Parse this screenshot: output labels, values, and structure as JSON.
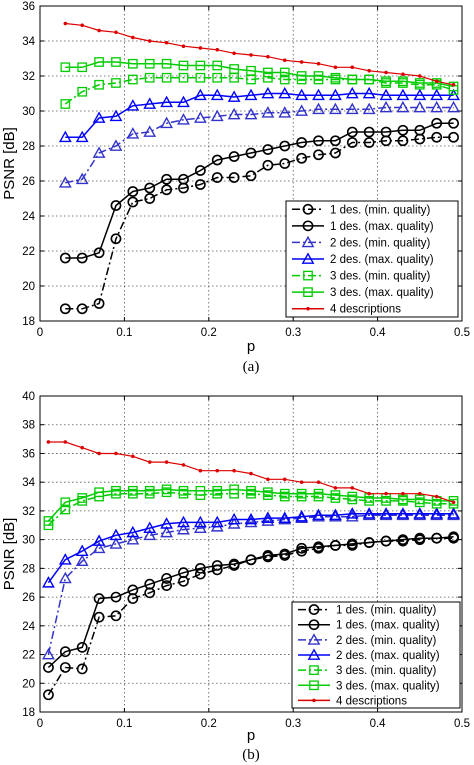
{
  "chart_data": [
    {
      "type": "line",
      "caption": "(a)",
      "xlabel": "p",
      "ylabel": "PSNR [dB]",
      "xlim": [
        0,
        0.5
      ],
      "ylim": [
        18,
        36
      ],
      "xticks": [
        "0",
        "0.1",
        "0.2",
        "0.3",
        "0.4",
        "0.5"
      ],
      "yticks": [
        "18",
        "20",
        "22",
        "24",
        "26",
        "28",
        "30",
        "32",
        "34",
        "36"
      ],
      "grid": true,
      "legend_position": "bottom-right",
      "series": [
        {
          "name": "1 des. (min. quality)",
          "color": "#000000",
          "dash": "dashdot",
          "marker": "circle",
          "x": [
            0.03,
            0.05,
            0.07,
            0.09,
            0.11,
            0.13,
            0.15,
            0.17,
            0.19,
            0.21,
            0.23,
            0.25,
            0.27,
            0.29,
            0.31,
            0.33,
            0.35,
            0.37,
            0.39,
            0.41,
            0.43,
            0.45,
            0.47,
            0.49
          ],
          "y": [
            18.7,
            18.7,
            19.0,
            22.7,
            24.8,
            25.0,
            25.5,
            25.6,
            25.8,
            26.2,
            26.2,
            26.3,
            26.9,
            27.0,
            27.3,
            27.5,
            27.6,
            28.2,
            28.2,
            28.3,
            28.3,
            28.4,
            28.5,
            28.5
          ]
        },
        {
          "name": "1 des. (max. quality)",
          "color": "#000000",
          "dash": "solid",
          "marker": "circle",
          "x": [
            0.03,
            0.05,
            0.07,
            0.09,
            0.11,
            0.13,
            0.15,
            0.17,
            0.19,
            0.21,
            0.23,
            0.25,
            0.27,
            0.29,
            0.31,
            0.33,
            0.35,
            0.37,
            0.39,
            0.41,
            0.43,
            0.45,
            0.47,
            0.49
          ],
          "y": [
            21.6,
            21.6,
            21.9,
            24.6,
            25.4,
            25.6,
            26.1,
            26.1,
            26.6,
            27.2,
            27.4,
            27.6,
            27.8,
            28.0,
            28.2,
            28.3,
            28.3,
            28.8,
            28.8,
            28.8,
            28.9,
            28.9,
            29.3,
            29.3
          ]
        },
        {
          "name": "2 des. (min. quality)",
          "color": "#3333cc",
          "dash": "dashdot",
          "marker": "triangle",
          "x": [
            0.03,
            0.05,
            0.07,
            0.09,
            0.11,
            0.13,
            0.15,
            0.17,
            0.19,
            0.21,
            0.23,
            0.25,
            0.27,
            0.29,
            0.31,
            0.33,
            0.35,
            0.37,
            0.39,
            0.41,
            0.43,
            0.45,
            0.47,
            0.49
          ],
          "y": [
            25.9,
            26.1,
            27.6,
            28.0,
            28.7,
            28.8,
            29.3,
            29.5,
            29.6,
            29.7,
            29.8,
            29.8,
            29.9,
            29.9,
            30.0,
            30.1,
            30.1,
            30.1,
            30.1,
            30.2,
            30.2,
            30.2,
            30.2,
            30.2
          ]
        },
        {
          "name": "2 des. (max. quality)",
          "color": "#0000ff",
          "dash": "solid",
          "marker": "triangle",
          "x": [
            0.03,
            0.05,
            0.07,
            0.09,
            0.11,
            0.13,
            0.15,
            0.17,
            0.19,
            0.21,
            0.23,
            0.25,
            0.27,
            0.29,
            0.31,
            0.33,
            0.35,
            0.37,
            0.39,
            0.41,
            0.43,
            0.45,
            0.47,
            0.49
          ],
          "y": [
            28.5,
            28.5,
            29.6,
            29.7,
            30.3,
            30.4,
            30.5,
            30.5,
            30.9,
            30.9,
            30.8,
            30.9,
            31.0,
            31.0,
            30.9,
            30.9,
            30.9,
            31.0,
            31.0,
            30.9,
            30.9,
            30.9,
            30.9,
            30.9
          ]
        },
        {
          "name": "3 des. (min. quality)",
          "color": "#00cc00",
          "dash": "dashdot",
          "marker": "square",
          "x": [
            0.03,
            0.05,
            0.07,
            0.09,
            0.11,
            0.13,
            0.15,
            0.17,
            0.19,
            0.21,
            0.23,
            0.25,
            0.27,
            0.29,
            0.31,
            0.33,
            0.35,
            0.37,
            0.39,
            0.41,
            0.43,
            0.45,
            0.47,
            0.49
          ],
          "y": [
            30.4,
            31.1,
            31.5,
            31.6,
            31.8,
            31.9,
            31.9,
            31.9,
            31.9,
            31.9,
            31.9,
            31.8,
            31.9,
            31.8,
            31.8,
            31.8,
            31.8,
            31.8,
            31.8,
            31.6,
            31.6,
            31.5,
            31.5,
            31.2
          ]
        },
        {
          "name": "3 des. (max. quality)",
          "color": "#00cc00",
          "dash": "solid",
          "marker": "square",
          "x": [
            0.03,
            0.05,
            0.07,
            0.09,
            0.11,
            0.13,
            0.15,
            0.17,
            0.19,
            0.21,
            0.23,
            0.25,
            0.27,
            0.29,
            0.31,
            0.33,
            0.35,
            0.37,
            0.39,
            0.41,
            0.43,
            0.45,
            0.47,
            0.49
          ],
          "y": [
            32.5,
            32.5,
            32.8,
            32.8,
            32.7,
            32.7,
            32.7,
            32.6,
            32.6,
            32.6,
            32.4,
            32.3,
            32.2,
            32.2,
            32.0,
            32.0,
            31.9,
            31.8,
            31.8,
            31.7,
            31.7,
            31.6,
            31.6,
            31.4
          ]
        },
        {
          "name": "4 descriptions",
          "color": "#dd0000",
          "dash": "solid",
          "marker": "dot",
          "x": [
            0.03,
            0.05,
            0.07,
            0.09,
            0.11,
            0.13,
            0.15,
            0.17,
            0.19,
            0.21,
            0.23,
            0.25,
            0.27,
            0.29,
            0.31,
            0.33,
            0.35,
            0.37,
            0.39,
            0.41,
            0.43,
            0.45,
            0.47,
            0.49
          ],
          "y": [
            35.0,
            34.9,
            34.6,
            34.5,
            34.2,
            34.0,
            33.9,
            33.7,
            33.6,
            33.5,
            33.3,
            33.2,
            33.1,
            32.9,
            32.8,
            32.7,
            32.5,
            32.5,
            32.3,
            32.2,
            32.1,
            32.0,
            31.7,
            31.5
          ]
        }
      ]
    },
    {
      "type": "line",
      "caption": "(b)",
      "xlabel": "p",
      "ylabel": "PSNR [dB]",
      "xlim": [
        0,
        0.5
      ],
      "ylim": [
        18,
        40
      ],
      "xticks": [
        "0",
        "0.1",
        "0.2",
        "0.3",
        "0.4",
        "0.5"
      ],
      "yticks": [
        "18",
        "20",
        "22",
        "24",
        "26",
        "28",
        "30",
        "32",
        "34",
        "36",
        "38",
        "40"
      ],
      "grid": true,
      "legend_position": "bottom-right",
      "series": [
        {
          "name": "1 des. (min. quality)",
          "color": "#000000",
          "dash": "dashdot",
          "marker": "circle",
          "x": [
            0.01,
            0.03,
            0.05,
            0.07,
            0.09,
            0.11,
            0.13,
            0.15,
            0.17,
            0.19,
            0.21,
            0.23,
            0.25,
            0.27,
            0.29,
            0.31,
            0.33,
            0.35,
            0.37,
            0.39,
            0.41,
            0.43,
            0.45,
            0.47,
            0.49
          ],
          "y": [
            19.2,
            21.1,
            21.0,
            24.6,
            24.7,
            25.9,
            26.3,
            26.8,
            27.1,
            27.6,
            27.9,
            28.2,
            28.6,
            28.8,
            28.9,
            29.2,
            29.4,
            29.6,
            29.6,
            29.8,
            29.9,
            29.9,
            30.0,
            30.1,
            30.1
          ]
        },
        {
          "name": "1 des. (max. quality)",
          "color": "#000000",
          "dash": "solid",
          "marker": "circle",
          "x": [
            0.01,
            0.03,
            0.05,
            0.07,
            0.09,
            0.11,
            0.13,
            0.15,
            0.17,
            0.19,
            0.21,
            0.23,
            0.25,
            0.27,
            0.29,
            0.31,
            0.33,
            0.35,
            0.37,
            0.39,
            0.41,
            0.43,
            0.45,
            0.47,
            0.49
          ],
          "y": [
            21.1,
            22.2,
            22.5,
            25.9,
            26.0,
            26.5,
            26.9,
            27.3,
            27.7,
            28.0,
            28.2,
            28.3,
            28.6,
            28.9,
            29.0,
            29.4,
            29.5,
            29.6,
            29.7,
            29.8,
            29.9,
            30.0,
            30.1,
            30.1,
            30.2
          ]
        },
        {
          "name": "2 des. (min. quality)",
          "color": "#3333cc",
          "dash": "dashdot",
          "marker": "triangle",
          "x": [
            0.01,
            0.03,
            0.05,
            0.07,
            0.09,
            0.11,
            0.13,
            0.15,
            0.17,
            0.19,
            0.21,
            0.23,
            0.25,
            0.27,
            0.29,
            0.31,
            0.33,
            0.35,
            0.37,
            0.39,
            0.41,
            0.43,
            0.45,
            0.47,
            0.49
          ],
          "y": [
            22.0,
            27.3,
            28.5,
            29.4,
            29.7,
            30.0,
            30.3,
            30.5,
            30.7,
            30.8,
            30.9,
            31.1,
            31.2,
            31.3,
            31.4,
            31.5,
            31.6,
            31.6,
            31.6,
            31.7,
            31.7,
            31.7,
            31.7,
            31.7,
            31.7
          ]
        },
        {
          "name": "2 des. (max. quality)",
          "color": "#0000ff",
          "dash": "solid",
          "marker": "triangle",
          "x": [
            0.01,
            0.03,
            0.05,
            0.07,
            0.09,
            0.11,
            0.13,
            0.15,
            0.17,
            0.19,
            0.21,
            0.23,
            0.25,
            0.27,
            0.29,
            0.31,
            0.33,
            0.35,
            0.37,
            0.39,
            0.41,
            0.43,
            0.45,
            0.47,
            0.49
          ],
          "y": [
            27.0,
            28.6,
            29.2,
            29.9,
            30.3,
            30.5,
            30.8,
            31.1,
            31.2,
            31.2,
            31.2,
            31.4,
            31.4,
            31.5,
            31.5,
            31.6,
            31.7,
            31.7,
            31.8,
            31.8,
            31.8,
            31.8,
            31.8,
            31.8,
            31.8
          ]
        },
        {
          "name": "3 des. (min. quality)",
          "color": "#00cc00",
          "dash": "dashdot",
          "marker": "square",
          "x": [
            0.01,
            0.03,
            0.05,
            0.07,
            0.09,
            0.11,
            0.13,
            0.15,
            0.17,
            0.19,
            0.21,
            0.23,
            0.25,
            0.27,
            0.29,
            0.31,
            0.33,
            0.35,
            0.37,
            0.39,
            0.41,
            0.43,
            0.45,
            0.47,
            0.49
          ],
          "y": [
            31.0,
            32.1,
            32.7,
            33.0,
            33.2,
            33.2,
            33.2,
            33.3,
            33.2,
            33.1,
            33.2,
            33.2,
            33.2,
            33.1,
            33.0,
            33.0,
            33.0,
            32.9,
            32.8,
            32.7,
            32.7,
            32.7,
            32.6,
            32.5,
            32.5
          ]
        },
        {
          "name": "3 des. (max. quality)",
          "color": "#00cc00",
          "dash": "solid",
          "marker": "square",
          "x": [
            0.01,
            0.03,
            0.05,
            0.07,
            0.09,
            0.11,
            0.13,
            0.15,
            0.17,
            0.19,
            0.21,
            0.23,
            0.25,
            0.27,
            0.29,
            0.31,
            0.33,
            0.35,
            0.37,
            0.39,
            0.41,
            0.43,
            0.45,
            0.47,
            0.49
          ],
          "y": [
            31.3,
            32.6,
            32.9,
            33.3,
            33.4,
            33.4,
            33.4,
            33.5,
            33.4,
            33.4,
            33.4,
            33.5,
            33.4,
            33.3,
            33.2,
            33.2,
            33.2,
            33.1,
            33.0,
            32.9,
            32.9,
            32.8,
            32.8,
            32.7,
            32.7
          ]
        },
        {
          "name": "4 descriptions",
          "color": "#dd0000",
          "dash": "solid",
          "marker": "dot",
          "x": [
            0.01,
            0.03,
            0.05,
            0.07,
            0.09,
            0.11,
            0.13,
            0.15,
            0.17,
            0.19,
            0.21,
            0.23,
            0.25,
            0.27,
            0.29,
            0.31,
            0.33,
            0.35,
            0.37,
            0.39,
            0.41,
            0.43,
            0.45,
            0.47,
            0.49
          ],
          "y": [
            36.8,
            36.8,
            36.4,
            36.0,
            36.0,
            35.8,
            35.4,
            35.4,
            35.2,
            34.8,
            34.8,
            34.8,
            34.6,
            34.2,
            34.2,
            34.0,
            34.0,
            33.6,
            33.6,
            33.2,
            33.2,
            33.2,
            33.2,
            33.0,
            32.6
          ]
        }
      ]
    }
  ]
}
